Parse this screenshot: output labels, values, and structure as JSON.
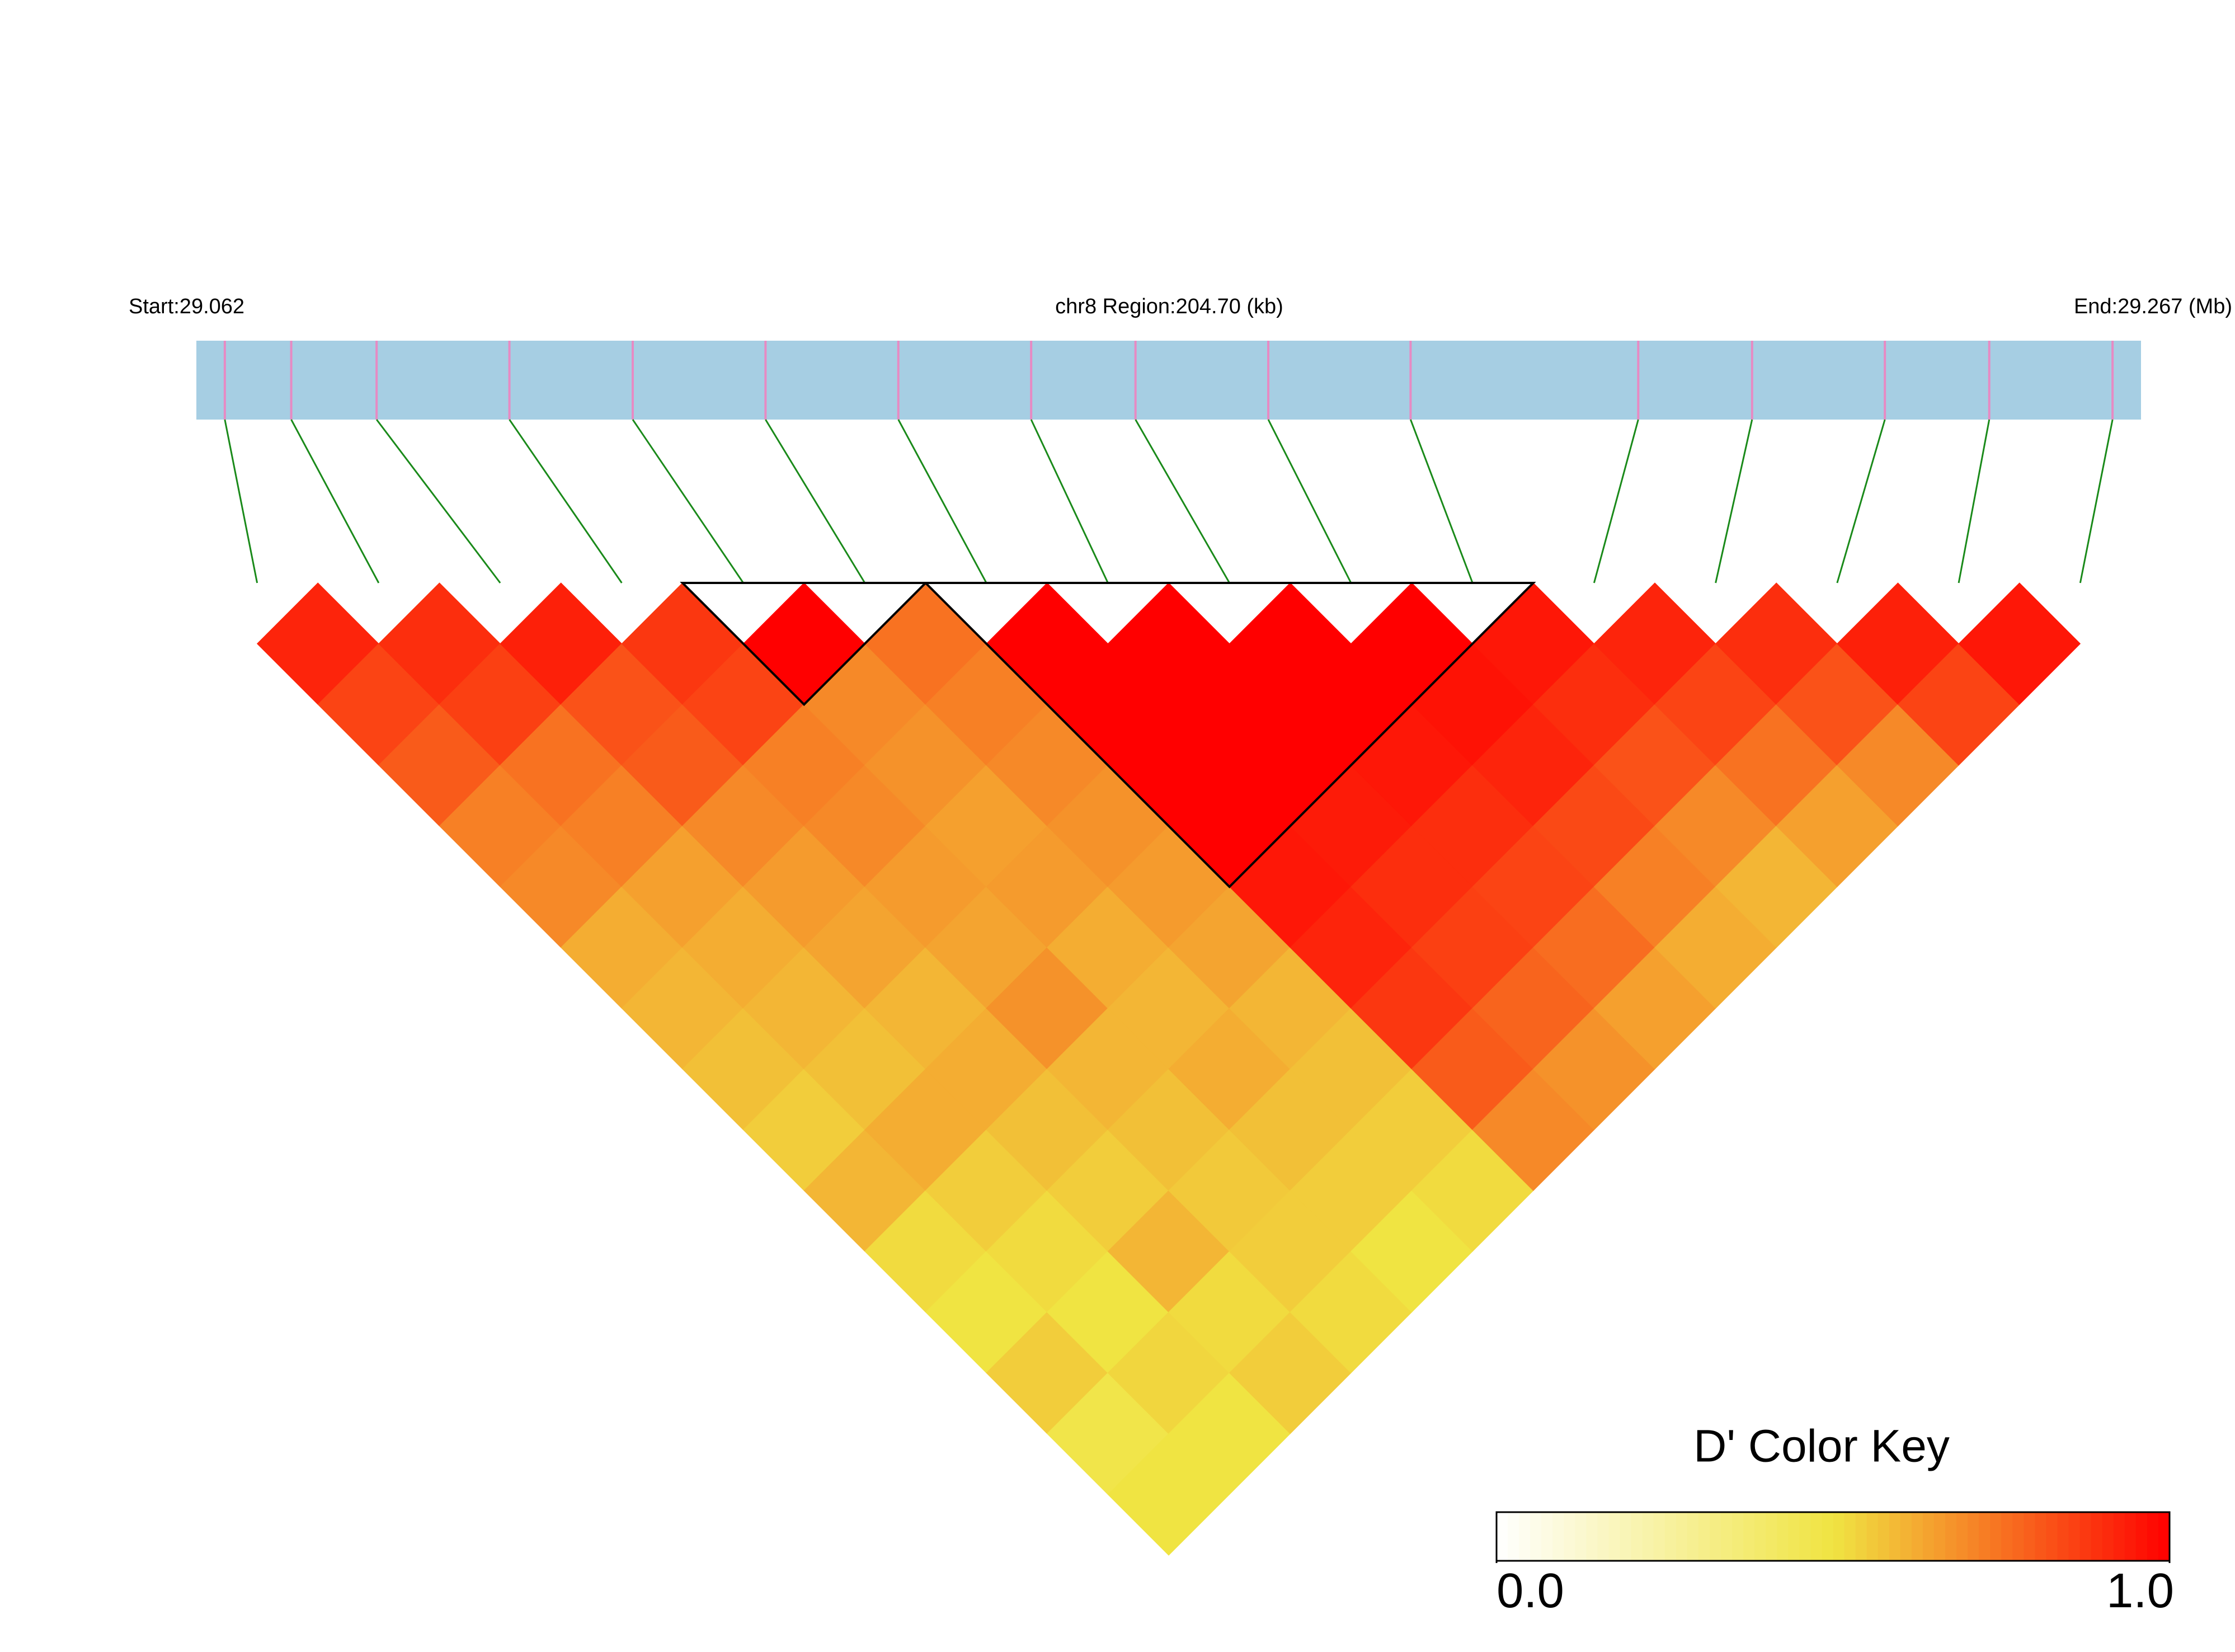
{
  "chart_data": {
    "type": "ld_heatmap",
    "start_label": "Start:29.062",
    "title": "chr8 Region:204.70 (kb)",
    "end_label": "End:29.267 (Mb)",
    "xlim": [
      29.062,
      29.267
    ],
    "snp_positions": [
      29.065,
      29.072,
      29.081,
      29.095,
      29.108,
      29.122,
      29.136,
      29.15,
      29.161,
      29.175,
      29.19,
      29.214,
      29.226,
      29.24,
      29.251,
      29.264
    ],
    "dprime": [
      [
        0.92,
        0.85,
        0.8,
        0.72,
        0.7,
        0.62,
        0.6,
        0.58,
        0.55,
        0.6,
        0.52,
        0.5,
        0.55,
        0.48,
        0.5
      ],
      [
        0.9,
        0.86,
        0.75,
        0.72,
        0.65,
        0.62,
        0.6,
        0.58,
        0.62,
        0.55,
        0.52,
        0.5,
        0.53,
        0.5
      ],
      [
        0.93,
        0.82,
        0.8,
        0.7,
        0.66,
        0.64,
        0.6,
        0.62,
        0.58,
        0.55,
        0.6,
        0.52,
        0.55
      ],
      [
        0.88,
        0.85,
        0.72,
        0.7,
        0.66,
        0.64,
        0.68,
        0.6,
        0.58,
        0.56,
        0.55,
        0.52
      ],
      [
        1.0,
        0.7,
        0.68,
        0.65,
        0.66,
        0.62,
        0.6,
        0.62,
        0.58,
        0.55,
        0.5
      ],
      [
        0.75,
        0.72,
        0.7,
        0.68,
        0.66,
        0.64,
        0.6,
        0.58,
        0.55,
        0.52
      ],
      [
        1.0,
        1.0,
        1.0,
        1.0,
        0.95,
        0.92,
        0.88,
        0.8,
        0.7
      ],
      [
        1.0,
        1.0,
        1.0,
        0.94,
        0.9,
        0.86,
        0.78,
        0.68
      ],
      [
        1.0,
        1.0,
        0.95,
        0.9,
        0.85,
        0.76,
        0.65
      ],
      [
        1.0,
        0.96,
        0.92,
        0.84,
        0.72,
        0.62
      ],
      [
        0.95,
        0.9,
        0.82,
        0.7,
        0.6
      ],
      [
        0.92,
        0.85,
        0.75,
        0.65
      ],
      [
        0.9,
        0.82,
        0.7
      ],
      [
        0.93,
        0.85
      ],
      [
        0.95
      ]
    ],
    "blocks": [
      [
        4,
        5
      ],
      [
        6,
        10
      ]
    ],
    "colors": [
      "#ffffff",
      "#f0e442",
      "#ff0000"
    ],
    "legend_title": "D' Color Key",
    "legend_lim": [
      0,
      1
    ],
    "legend_ticks": [
      {
        "value": 0,
        "label": "0.0"
      },
      {
        "value": 1,
        "label": "1.0"
      }
    ]
  }
}
